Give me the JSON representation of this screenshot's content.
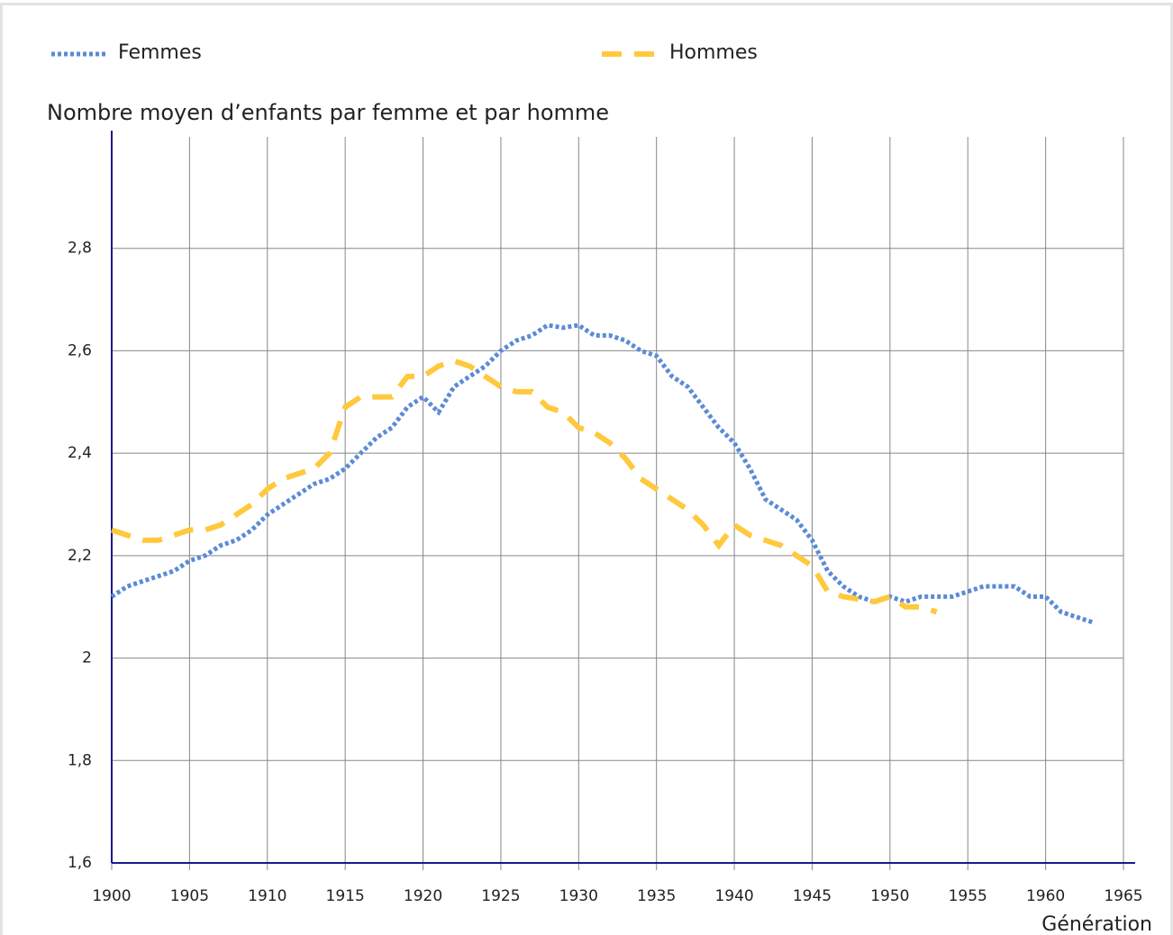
{
  "chart_data": {
    "type": "line",
    "title": "Nombre moyen d’enfants par femme et par homme",
    "x_label": "Génération",
    "x": [
      1900,
      1901,
      1902,
      1903,
      1904,
      1905,
      1906,
      1907,
      1908,
      1909,
      1910,
      1911,
      1912,
      1913,
      1914,
      1915,
      1916,
      1917,
      1918,
      1919,
      1920,
      1921,
      1922,
      1923,
      1924,
      1925,
      1926,
      1927,
      1928,
      1929,
      1930,
      1931,
      1932,
      1933,
      1934,
      1935,
      1936,
      1937,
      1938,
      1939,
      1940,
      1941,
      1942,
      1943,
      1944,
      1945,
      1946,
      1947,
      1948,
      1949,
      1950,
      1951,
      1952,
      1953,
      1954,
      1955,
      1956,
      1957,
      1958,
      1959,
      1960,
      1961,
      1962,
      1963
    ],
    "series": [
      {
        "name": "Femmes",
        "color": "#5b8bd6",
        "style": "dotted",
        "values": [
          2.12,
          2.14,
          2.15,
          2.16,
          2.17,
          2.19,
          2.2,
          2.22,
          2.23,
          2.25,
          2.28,
          2.3,
          2.32,
          2.34,
          2.35,
          2.37,
          2.4,
          2.43,
          2.45,
          2.49,
          2.51,
          2.48,
          2.53,
          2.55,
          2.57,
          2.6,
          2.62,
          2.63,
          2.65,
          2.645,
          2.65,
          2.63,
          2.63,
          2.62,
          2.6,
          2.59,
          2.55,
          2.53,
          2.49,
          2.45,
          2.42,
          2.37,
          2.31,
          2.29,
          2.27,
          2.23,
          2.17,
          2.14,
          2.12,
          2.11,
          2.12,
          2.11,
          2.12,
          2.12,
          2.12,
          2.13,
          2.14,
          2.14,
          2.14,
          2.12,
          2.12,
          2.09,
          2.08,
          2.07
        ]
      },
      {
        "name": "Hommes",
        "color": "#ffc83d",
        "style": "dashed",
        "values": [
          2.25,
          2.24,
          2.23,
          2.23,
          2.24,
          2.25,
          2.25,
          2.26,
          2.28,
          2.3,
          2.33,
          2.35,
          2.36,
          2.37,
          2.4,
          2.49,
          2.51,
          2.51,
          2.51,
          2.55,
          2.55,
          2.57,
          2.58,
          2.57,
          2.55,
          2.53,
          2.52,
          2.52,
          2.49,
          2.48,
          2.45,
          2.44,
          2.42,
          2.39,
          2.35,
          2.33,
          2.31,
          2.29,
          2.26,
          2.22,
          2.26,
          2.24,
          2.23,
          2.22,
          2.2,
          2.18,
          2.13,
          2.12,
          2.115,
          2.11,
          2.12,
          2.1,
          2.1,
          2.09,
          null,
          null,
          null,
          null,
          null,
          null,
          null,
          null,
          null,
          null
        ]
      }
    ],
    "xlim": [
      1900,
      1965
    ],
    "xticks": [
      1900,
      1905,
      1910,
      1915,
      1920,
      1925,
      1930,
      1935,
      1940,
      1945,
      1950,
      1955,
      1960,
      1965
    ],
    "ylim": [
      1.6,
      3.0
    ],
    "yticks": [
      {
        "value": 1.6,
        "label": "1,6"
      },
      {
        "value": 1.8,
        "label": "1,8"
      },
      2,
      {
        "value": 2.2,
        "label": "2,2"
      },
      {
        "value": 2.4,
        "label": "2,4"
      },
      {
        "value": 2.6,
        "label": "2,6"
      },
      {
        "value": 2.8,
        "label": "2,8"
      }
    ],
    "grid": true
  }
}
